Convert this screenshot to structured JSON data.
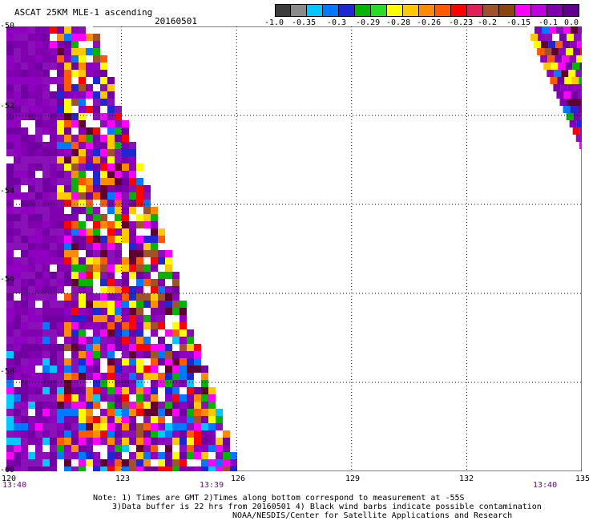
{
  "title": "ASCAT 25KM MLE-1 ascending",
  "date": "20160501",
  "colorbar": {
    "colors": [
      "#3c3c3c",
      "#8a8a8a",
      "#00c8ff",
      "#0078ff",
      "#1e28d2",
      "#00b400",
      "#28dc28",
      "#ffff00",
      "#ffc800",
      "#ff8c00",
      "#ff5a00",
      "#ff0000",
      "#e11e5a",
      "#a0522d",
      "#8b4513",
      "#ff00ff",
      "#c000e0",
      "#8000b0",
      "#600090"
    ],
    "labels": [
      "-1.0",
      "-0.35",
      "-0.3",
      "-0.29",
      "-0.28",
      "-0.26",
      "-0.23",
      "-0.2",
      "-0.15",
      "-0.1",
      "0.0"
    ]
  },
  "map": {
    "lon_range": [
      120,
      135
    ],
    "lat_range": [
      -60,
      -50
    ],
    "gridline_lons": [
      123,
      126,
      129,
      132
    ],
    "gridline_lats": [
      -52,
      -54,
      -56,
      -58
    ]
  },
  "y_labels": [
    "-50",
    "-52",
    "-54",
    "-56",
    "-58",
    "-60"
  ],
  "x_labels": [
    "120",
    "123",
    "126",
    "129",
    "132",
    "135"
  ],
  "times": [
    "13:40",
    "13:39",
    "13:40"
  ],
  "notes": [
    "Note: 1) Times are GMT 2)Times along bottom correspond to measurement at -55S",
    "3)Data buffer is 22 hrs from 20160501 4) Black wind barbs indicate possible contamination",
    "NOAA/NESDIS/Center for Satellite Applications and Research"
  ]
}
